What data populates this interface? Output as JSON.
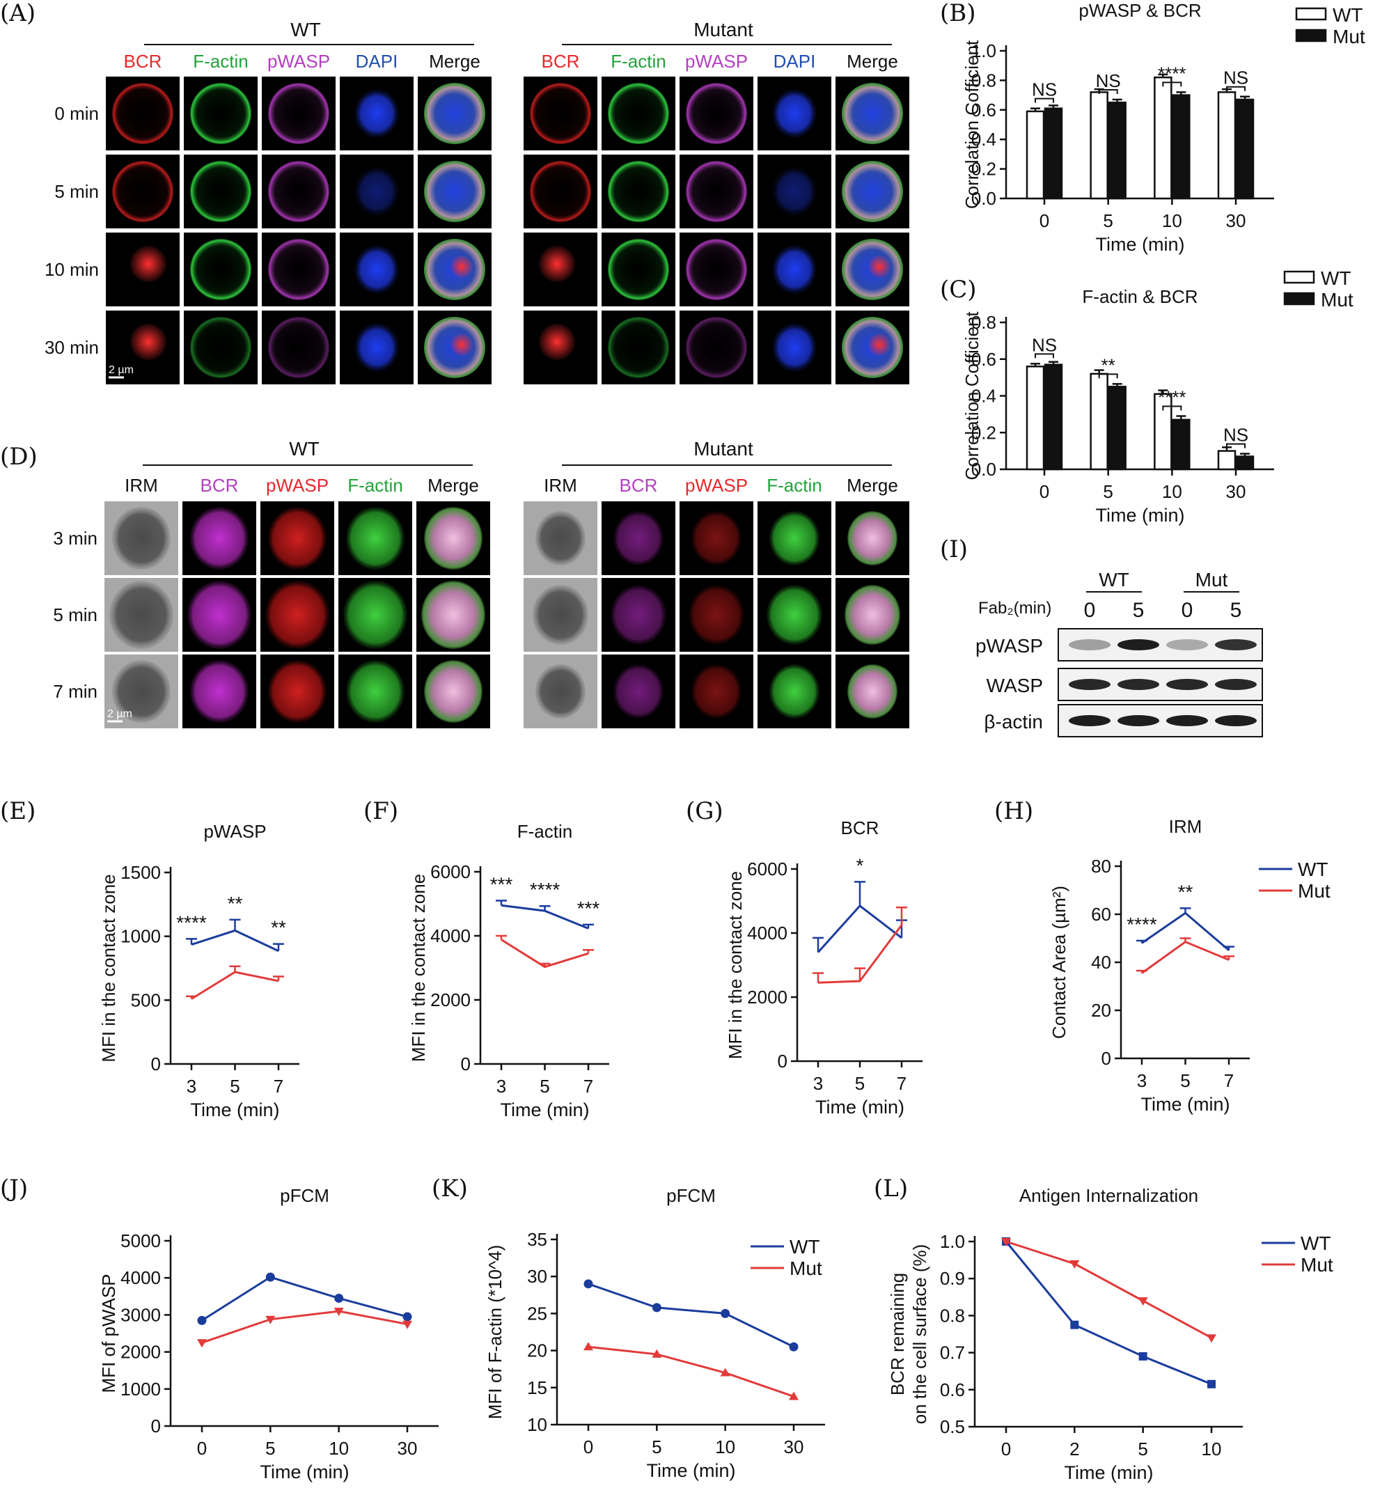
{
  "panels": {
    "A": {
      "label": "(A)",
      "groups": [
        {
          "title": "WT"
        },
        {
          "title": "Mutant"
        }
      ],
      "channels": [
        {
          "name": "BCR",
          "color": "#e8282a"
        },
        {
          "name": "F-actin",
          "color": "#22a33a"
        },
        {
          "name": "pWASP",
          "color": "#b43fc1"
        },
        {
          "name": "DAPI",
          "color": "#1f4fb5"
        },
        {
          "name": "Merge",
          "color": "#111111"
        }
      ],
      "rows": [
        "0 min",
        "5 min",
        "10 min",
        "30 min"
      ],
      "scale_bar": "2 µm"
    },
    "D": {
      "label": "(D)",
      "groups": [
        {
          "title": "WT"
        },
        {
          "title": "Mutant"
        }
      ],
      "channels": [
        {
          "name": "IRM",
          "color": "#111111"
        },
        {
          "name": "BCR",
          "color": "#b43fc1"
        },
        {
          "name": "pWASP",
          "color": "#e8282a"
        },
        {
          "name": "F-actin",
          "color": "#22a33a"
        },
        {
          "name": "Merge",
          "color": "#111111"
        }
      ],
      "rows": [
        "3 min",
        "5 min",
        "7 min"
      ],
      "scale_bar": "2 µm"
    },
    "I": {
      "label": "(I)",
      "groups": [
        "WT",
        "Mut"
      ],
      "treatment_label": "Fab₂(min)",
      "lanes": [
        "0",
        "5",
        "0",
        "5"
      ],
      "bands": [
        {
          "name": "pWASP",
          "intensity": [
            0.3,
            0.95,
            0.25,
            0.85
          ]
        },
        {
          "name": "WASP",
          "intensity": [
            0.9,
            0.9,
            0.9,
            0.9
          ]
        },
        {
          "name": "β-actin",
          "intensity": [
            0.95,
            0.95,
            0.95,
            0.95
          ]
        }
      ]
    }
  },
  "chart_data": [
    {
      "id": "B",
      "label": "(B)",
      "type": "bar",
      "title": "pWASP & BCR",
      "xlabel": "Time (min)",
      "ylabel": "Correlation Cofficient",
      "categories": [
        "0",
        "5",
        "10",
        "30"
      ],
      "ylim": [
        0,
        1.0
      ],
      "yticks": [
        "0.0",
        "0.2",
        "0.4",
        "0.6",
        "0.8",
        "1.0"
      ],
      "series": [
        {
          "name": "WT",
          "values": [
            0.59,
            0.72,
            0.82,
            0.72
          ],
          "errors": [
            0.02,
            0.02,
            0.02,
            0.02
          ]
        },
        {
          "name": "Mut",
          "values": [
            0.61,
            0.65,
            0.7,
            0.67
          ],
          "errors": [
            0.02,
            0.02,
            0.02,
            0.02
          ]
        }
      ],
      "significance": [
        "NS",
        "NS",
        "****",
        "NS"
      ]
    },
    {
      "id": "C",
      "label": "(C)",
      "type": "bar",
      "title": "F-actin & BCR",
      "xlabel": "Time (min)",
      "ylabel": "Correlation Cofficient",
      "categories": [
        "0",
        "5",
        "10",
        "30"
      ],
      "ylim": [
        0,
        0.8
      ],
      "yticks": [
        "0.0",
        "0.2",
        "0.4",
        "0.6",
        "0.8"
      ],
      "series": [
        {
          "name": "WT",
          "values": [
            0.56,
            0.52,
            0.41,
            0.1
          ],
          "errors": [
            0.015,
            0.02,
            0.02,
            0.02
          ]
        },
        {
          "name": "Mut",
          "values": [
            0.57,
            0.45,
            0.27,
            0.07
          ],
          "errors": [
            0.015,
            0.015,
            0.02,
            0.015
          ]
        }
      ],
      "significance": [
        "NS",
        "**",
        "****",
        "NS"
      ]
    },
    {
      "id": "E",
      "label": "(E)",
      "type": "line",
      "title": "pWASP",
      "xlabel": "Time (min)",
      "ylabel": "MFI in the contact zone",
      "x": [
        "3",
        "5",
        "7"
      ],
      "ylim": [
        0,
        1500
      ],
      "yticks": [
        "0",
        "500",
        "1000",
        "1500"
      ],
      "series": [
        {
          "name": "WT",
          "values": [
            935,
            1045,
            885
          ],
          "errors": [
            45,
            85,
            55
          ]
        },
        {
          "name": "Mut",
          "values": [
            510,
            720,
            650
          ],
          "errors": [
            20,
            45,
            35
          ]
        }
      ],
      "significance": [
        "****",
        "**",
        "**"
      ]
    },
    {
      "id": "F",
      "label": "(F)",
      "type": "line",
      "title": "F-actin",
      "xlabel": "Time (min)",
      "ylabel": "MFI in the contact zone",
      "x": [
        "3",
        "5",
        "7"
      ],
      "ylim": [
        0,
        6000
      ],
      "yticks": [
        "0",
        "2000",
        "4000",
        "6000"
      ],
      "series": [
        {
          "name": "WT",
          "values": [
            4950,
            4780,
            4230
          ],
          "errors": [
            150,
            150,
            120
          ]
        },
        {
          "name": "Mut",
          "values": [
            3880,
            3030,
            3450
          ],
          "errors": [
            120,
            100,
            110
          ]
        }
      ],
      "significance": [
        "***",
        "****",
        "***"
      ]
    },
    {
      "id": "G",
      "label": "(G)",
      "type": "line",
      "title": "BCR",
      "xlabel": "Time (min)",
      "ylabel": "MFI in the contact zone",
      "x": [
        "3",
        "5",
        "7"
      ],
      "ylim": [
        0,
        6000
      ],
      "yticks": [
        "0",
        "2000",
        "4000",
        "6000"
      ],
      "series": [
        {
          "name": "WT",
          "values": [
            3400,
            4850,
            3850
          ],
          "errors": [
            450,
            750,
            550
          ]
        },
        {
          "name": "Mut",
          "values": [
            2450,
            2500,
            4250
          ],
          "errors": [
            300,
            400,
            550
          ]
        }
      ],
      "significance": [
        "",
        "*",
        ""
      ]
    },
    {
      "id": "H",
      "label": "(H)",
      "type": "line",
      "title": "IRM",
      "xlabel": "Time (min)",
      "ylabel": "Contact Area (µm²)",
      "x": [
        "3",
        "5",
        "7"
      ],
      "ylim": [
        0,
        80
      ],
      "yticks": [
        "0",
        "20",
        "40",
        "60",
        "80"
      ],
      "series": [
        {
          "name": "WT",
          "values": [
            48,
            60.5,
            45
          ],
          "errors": [
            1,
            2,
            1.5
          ]
        },
        {
          "name": "Mut",
          "values": [
            35.5,
            48.5,
            41
          ],
          "errors": [
            1,
            1.5,
            1.5
          ]
        }
      ],
      "significance": [
        "****",
        "**",
        ""
      ]
    },
    {
      "id": "J",
      "label": "(J)",
      "type": "line",
      "title": "pFCM",
      "xlabel": "Time (min)",
      "ylabel": "MFI of pWASP",
      "x": [
        "0",
        "5",
        "10",
        "30"
      ],
      "ylim": [
        0,
        5000
      ],
      "yticks": [
        "0",
        "1000",
        "2000",
        "3000",
        "4000",
        "5000"
      ],
      "series": [
        {
          "name": "WT",
          "values": [
            2850,
            4020,
            3450,
            2950
          ]
        },
        {
          "name": "Mut",
          "values": [
            2250,
            2880,
            3100,
            2750
          ]
        }
      ]
    },
    {
      "id": "K",
      "label": "(K)",
      "type": "line",
      "title": "pFCM",
      "xlabel": "Time (min)",
      "ylabel": "MFI of F-actin (*10^4)",
      "x": [
        "0",
        "5",
        "10",
        "30"
      ],
      "ylim": [
        10,
        35
      ],
      "yticks": [
        "10",
        "15",
        "20",
        "25",
        "30",
        "35"
      ],
      "series": [
        {
          "name": "WT",
          "values": [
            29.0,
            25.8,
            25.0,
            20.5
          ]
        },
        {
          "name": "Mut",
          "values": [
            20.5,
            19.5,
            17.0,
            13.8
          ]
        }
      ]
    },
    {
      "id": "L",
      "label": "(L)",
      "type": "line",
      "title": "Antigen Internalization",
      "xlabel": "Time (min)",
      "ylabel": [
        "BCR remaining",
        "on the cell surface (%)"
      ],
      "x": [
        "0",
        "2",
        "5",
        "10"
      ],
      "ylim": [
        0.5,
        1.0
      ],
      "yticks": [
        "0.5",
        "0.6",
        "0.7",
        "0.8",
        "0.9",
        "1.0"
      ],
      "series": [
        {
          "name": "WT",
          "values": [
            1.0,
            0.775,
            0.69,
            0.615
          ]
        },
        {
          "name": "Mut",
          "values": [
            1.0,
            0.94,
            0.84,
            0.74
          ]
        }
      ]
    }
  ],
  "legend": {
    "wt": "WT",
    "mut": "Mut"
  },
  "colors": {
    "wt": "#1a3c9c",
    "mut": "#e23a3a",
    "axis": "#111111"
  }
}
